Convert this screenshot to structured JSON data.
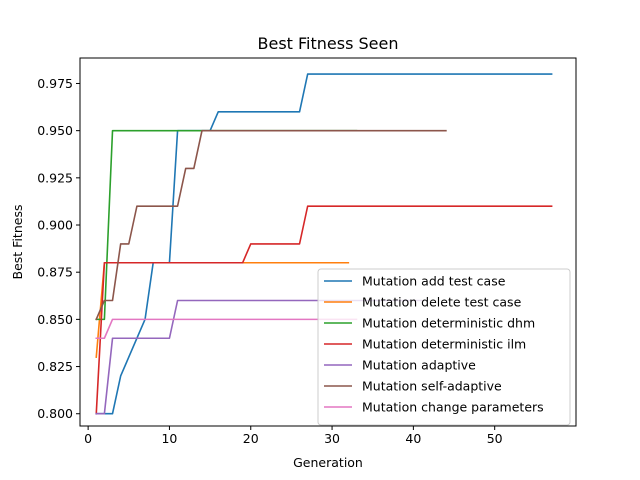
{
  "chart_data": {
    "type": "line",
    "title": "Best Fitness Seen",
    "xlabel": "Generation",
    "ylabel": "Best Fitness",
    "xlim": [
      -1,
      60
    ],
    "ylim": [
      0.7935,
      0.9885
    ],
    "xticks": [
      0,
      10,
      20,
      30,
      40,
      50
    ],
    "yticks": [
      0.8,
      0.825,
      0.85,
      0.875,
      0.9,
      0.925,
      0.95,
      0.975
    ],
    "ytick_labels": [
      "0.800",
      "0.825",
      "0.850",
      "0.875",
      "0.900",
      "0.925",
      "0.950",
      "0.975"
    ],
    "grid": false,
    "legend_position": "lower right",
    "series": [
      {
        "name": "Mutation add test case",
        "color": "#1f77b4",
        "points": [
          [
            1,
            0.8
          ],
          [
            2,
            0.8
          ],
          [
            3,
            0.8
          ],
          [
            4,
            0.82
          ],
          [
            5,
            0.83
          ],
          [
            7,
            0.85
          ],
          [
            8,
            0.88
          ],
          [
            10,
            0.88
          ],
          [
            11,
            0.95
          ],
          [
            15,
            0.95
          ],
          [
            16,
            0.96
          ],
          [
            26,
            0.96
          ],
          [
            27,
            0.98
          ],
          [
            57,
            0.98
          ]
        ]
      },
      {
        "name": "Mutation delete test case",
        "color": "#ff7f0e",
        "points": [
          [
            1,
            0.83
          ],
          [
            2,
            0.88
          ],
          [
            32,
            0.88
          ]
        ]
      },
      {
        "name": "Mutation deterministic dhm",
        "color": "#2ca02c",
        "points": [
          [
            1,
            0.85
          ],
          [
            2,
            0.85
          ],
          [
            3,
            0.95
          ],
          [
            33,
            0.95
          ]
        ]
      },
      {
        "name": "Mutation deterministic ilm",
        "color": "#d62728",
        "points": [
          [
            1,
            0.8
          ],
          [
            2,
            0.88
          ],
          [
            19,
            0.88
          ],
          [
            20,
            0.89
          ],
          [
            26,
            0.89
          ],
          [
            27,
            0.91
          ],
          [
            57,
            0.91
          ]
        ]
      },
      {
        "name": "Mutation adaptive",
        "color": "#9467bd",
        "points": [
          [
            1,
            0.8
          ],
          [
            2,
            0.8
          ],
          [
            3,
            0.84
          ],
          [
            10,
            0.84
          ],
          [
            11,
            0.86
          ],
          [
            41,
            0.86
          ]
        ]
      },
      {
        "name": "Mutation self-adaptive",
        "color": "#8c564b",
        "points": [
          [
            1,
            0.85
          ],
          [
            2,
            0.86
          ],
          [
            3,
            0.86
          ],
          [
            4,
            0.89
          ],
          [
            5,
            0.89
          ],
          [
            6,
            0.91
          ],
          [
            11,
            0.91
          ],
          [
            12,
            0.93
          ],
          [
            13,
            0.93
          ],
          [
            14,
            0.95
          ],
          [
            44,
            0.95
          ]
        ]
      },
      {
        "name": "Mutation change parameters",
        "color": "#e377c2",
        "points": [
          [
            1,
            0.84
          ],
          [
            2,
            0.84
          ],
          [
            3,
            0.85
          ],
          [
            33,
            0.85
          ]
        ]
      }
    ]
  }
}
